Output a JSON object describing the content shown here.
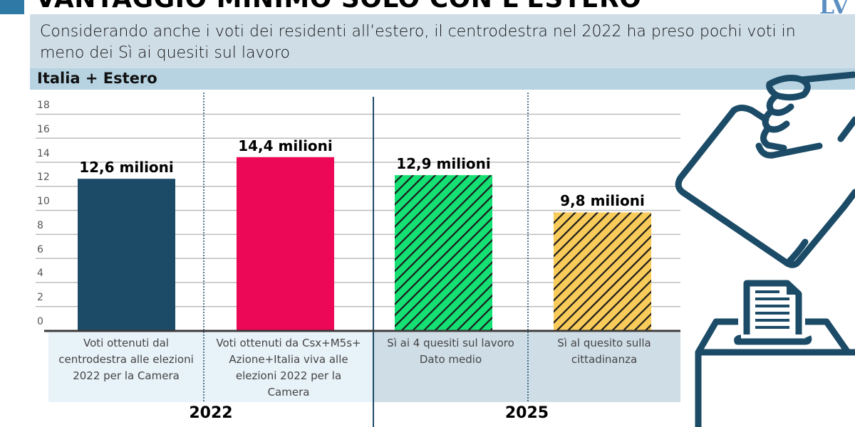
{
  "header": {
    "title": "VANTAGGIO MINIMO SOLO CON L'ESTERO",
    "logo": "LV",
    "subtitle": "Considerando anche i voti dei residenti all’estero, il centrodestra nel 2022 ha preso pochi voti in meno dei Sì ai quesiti sul lavoro",
    "section_label": "Italia + Estero"
  },
  "colors": {
    "accent": "#2e79a6",
    "centrodestra": "#1b4b67",
    "csx": "#ec0856",
    "lavoro": "#14e074",
    "cittadinanza": "#f9cb5a",
    "hatch": "#1a1a1a",
    "illustration": "#1b4b67"
  },
  "chart_data": {
    "type": "bar",
    "title": "VANTAGGIO MINIMO SOLO CON L'ESTERO",
    "subtitle": "Considerando anche i voti dei residenti all’estero, il centrodestra nel 2022 ha preso pochi voti in meno dei Sì ai quesiti sul lavoro",
    "xlabel": "",
    "ylabel": "",
    "unit": "milioni",
    "ylim": [
      0,
      18
    ],
    "yticks": [
      0,
      2,
      4,
      6,
      8,
      10,
      12,
      14,
      16,
      18
    ],
    "grid": true,
    "categories": [
      "Voti ottenuti dal centrodestra alle elezioni 2022 per la Camera",
      "Voti ottenuti da Csx+M5s+ Azione+Italia viva alle elezioni 2022 per la Camera",
      "Sì ai 4 quesiti sul lavoro Dato medio",
      "Sì al quesito sulla cittadinanza"
    ],
    "values": [
      12.6,
      14.4,
      12.9,
      9.8
    ],
    "data_labels": [
      "12,6 milioni",
      "14,4 milioni",
      "12,9 milioni",
      "9,8 milioni"
    ],
    "bar_styles": [
      "solid",
      "solid",
      "hatched",
      "hatched"
    ],
    "bar_colors": [
      "#1b4b67",
      "#ec0856",
      "#14e074",
      "#f9cb5a"
    ],
    "groups": [
      {
        "label": "2022",
        "categories": [
          0,
          1
        ]
      },
      {
        "label": "2025",
        "categories": [
          2,
          3
        ]
      }
    ]
  },
  "category_labels": [
    [
      "Voti ottenuti dal",
      "centrodestra alle elezioni",
      "2022 per la Camera"
    ],
    [
      "Voti ottenuti da Csx+M5s+",
      "Azione+Italia viva alle",
      "elezioni 2022 per la",
      "Camera"
    ],
    [
      "Sì ai 4 quesiti sul lavoro",
      "Dato medio"
    ],
    [
      "Sì al quesito sulla",
      "cittadinanza"
    ]
  ]
}
